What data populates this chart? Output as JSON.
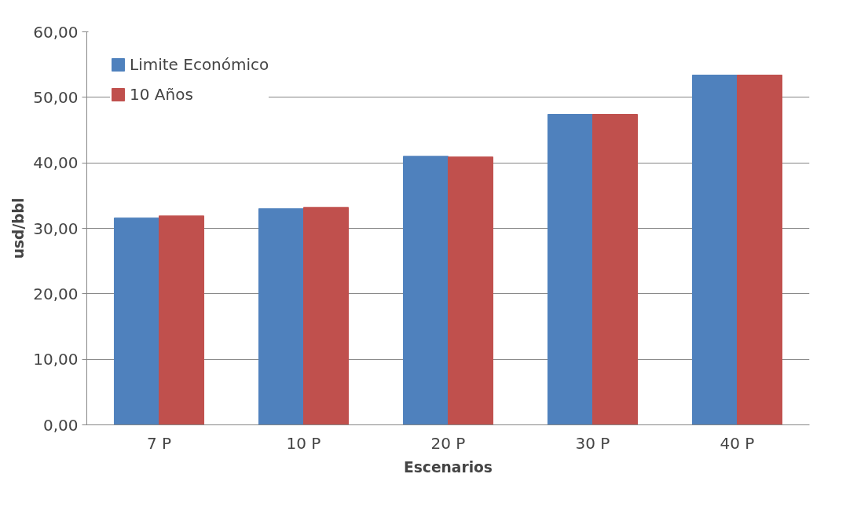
{
  "chart_data": {
    "type": "bar",
    "xlabel": "Escenarios",
    "ylabel": "usd/bbl",
    "categories": [
      "7 P",
      "10 P",
      "20 P",
      "30 P",
      "40 P"
    ],
    "series": [
      {
        "name": "Limite Económico",
        "color": "#4f81bd",
        "values": [
          31.6,
          33.0,
          41.0,
          47.4,
          53.4
        ]
      },
      {
        "name": "10 Años",
        "color": "#c0504d",
        "values": [
          31.9,
          33.2,
          40.9,
          47.4,
          53.4
        ]
      }
    ],
    "ylim": [
      0,
      60
    ],
    "yticks": [
      {
        "value": 0,
        "label": "0,00"
      },
      {
        "value": 10,
        "label": "10,00"
      },
      {
        "value": 20,
        "label": "20,00"
      },
      {
        "value": 30,
        "label": "30,00"
      },
      {
        "value": 40,
        "label": "40,00"
      },
      {
        "value": 50,
        "label": "50,00"
      },
      {
        "value": 60,
        "label": "60,00"
      }
    ],
    "grid": "y",
    "legend": "top left"
  }
}
